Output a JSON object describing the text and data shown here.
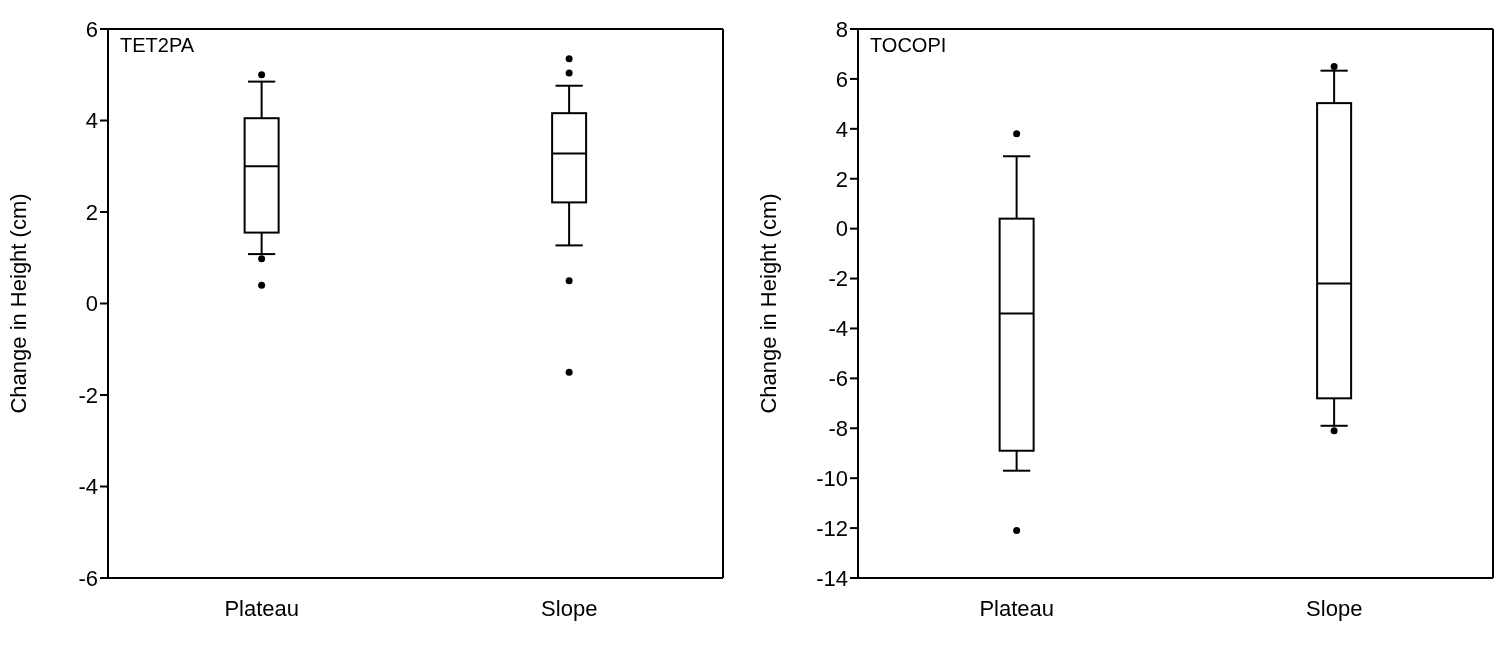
{
  "chart_data": [
    {
      "type": "box",
      "title": "TET2PA",
      "ylabel": "Change in Height (cm)",
      "categories": [
        "Plateau",
        "Slope"
      ],
      "ylim": [
        -6,
        6
      ],
      "yticks": [
        -6,
        -4,
        -2,
        0,
        2,
        4,
        6
      ],
      "boxes": [
        {
          "low": 1.08,
          "q1": 1.55,
          "median": 3.0,
          "q3": 4.05,
          "high": 4.85,
          "outliers": [
            5.0,
            0.98,
            0.4
          ]
        },
        {
          "low": 1.27,
          "q1": 2.21,
          "median": 3.28,
          "q3": 4.16,
          "high": 4.76,
          "outliers": [
            5.35,
            5.04,
            0.5,
            -1.5
          ]
        }
      ]
    },
    {
      "type": "box",
      "title": "TOCOPI",
      "ylabel": "Change in Height (cm)",
      "categories": [
        "Plateau",
        "Slope"
      ],
      "ylim": [
        -14,
        8
      ],
      "yticks": [
        -14,
        -12,
        -10,
        -8,
        -6,
        -4,
        -2,
        0,
        2,
        4,
        6,
        8
      ],
      "boxes": [
        {
          "low": -9.7,
          "q1": -8.9,
          "median": -3.4,
          "q3": 0.4,
          "high": 2.9,
          "outliers": [
            3.8,
            -12.1
          ]
        },
        {
          "low": -7.9,
          "q1": -6.8,
          "median": -2.2,
          "q3": 5.03,
          "high": 6.33,
          "outliers": [
            6.5,
            -8.1
          ]
        }
      ]
    }
  ]
}
